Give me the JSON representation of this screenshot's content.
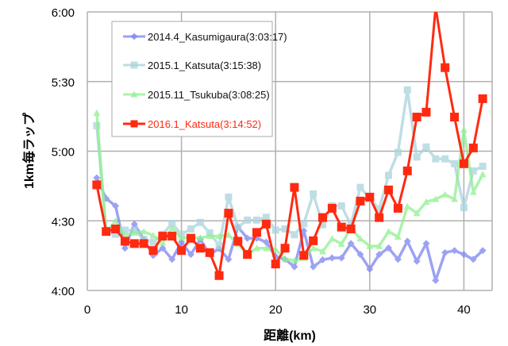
{
  "chart_data": {
    "type": "line",
    "title": "",
    "xlabel": "距離(km)",
    "ylabel": "1km毎ラップ",
    "xlim": [
      0,
      43
    ],
    "ylim": [
      240,
      360
    ],
    "y_unit": "seconds per km",
    "x_ticks": [
      0,
      10,
      20,
      30,
      40
    ],
    "x_tick_labels": [
      "0",
      "10",
      "20",
      "30",
      "40"
    ],
    "y_ticks": [
      240,
      270,
      300,
      330,
      360
    ],
    "y_tick_labels": [
      "4:00",
      "4:30",
      "5:00",
      "5:30",
      "6:00"
    ],
    "grid": true,
    "legend_position": "top-left",
    "x": [
      1,
      2,
      3,
      4,
      5,
      6,
      7,
      8,
      9,
      10,
      11,
      12,
      13,
      14,
      15,
      16,
      17,
      18,
      19,
      20,
      21,
      22,
      23,
      24,
      25,
      26,
      27,
      28,
      29,
      30,
      31,
      32,
      33,
      34,
      35,
      36,
      37,
      38,
      39,
      40,
      41,
      42
    ],
    "series": [
      {
        "name": "2014.4_Kasumigaura(3:03:17)",
        "color": "#7b84f0",
        "marker": "diamond",
        "values": [
          288.5,
          279.6,
          276.4,
          258.2,
          268.6,
          262,
          255.1,
          258.2,
          253.4,
          260.8,
          255.5,
          262,
          255.5,
          258,
          253.4,
          267.3,
          262.5,
          262.5,
          260.8,
          254.6,
          253.4,
          250.2,
          265.7,
          250.2,
          253.2,
          254,
          254,
          260.2,
          255.5,
          249.2,
          255.5,
          258.3,
          253.4,
          261.2,
          252.6,
          260.2,
          244.3,
          256.3,
          257.2,
          255.5,
          253.4,
          257.2
        ]
      },
      {
        "name": "2015.1_Katsuta(3:15:38)",
        "color": "#a9d4dc",
        "marker": "square",
        "values": [
          311,
          265.6,
          264.2,
          266,
          266,
          262,
          260.8,
          264.2,
          268.8,
          264.2,
          266.5,
          269.3,
          264.8,
          259.3,
          280.2,
          267.3,
          270.3,
          270.3,
          271.5,
          266,
          266.5,
          264,
          268.8,
          281.6,
          268.3,
          276.4,
          276.4,
          268.3,
          284.4,
          279.6,
          275,
          289.6,
          299.5,
          326.4,
          297.5,
          301.8,
          296.7,
          296.7,
          294.6,
          275.7,
          291.5,
          293.5
        ]
      },
      {
        "name": "2015.11_Tsukuba(3:08:25)",
        "color": "#8ff08f",
        "marker": "triangle",
        "values": [
          316.5,
          265,
          269.9,
          263.7,
          264.8,
          265.4,
          263.7,
          260.5,
          266.8,
          262.7,
          262.7,
          262.7,
          263.4,
          263.4,
          263.9,
          260,
          255.5,
          258.2,
          258.2,
          257.7,
          253.6,
          252.9,
          254,
          258.2,
          256.8,
          262.3,
          260,
          266.8,
          262.3,
          259.1,
          259.1,
          265.4,
          263.1,
          276.2,
          273.3,
          278.2,
          279.3,
          281.3,
          279.3,
          309.2,
          282.4,
          290
        ]
      },
      {
        "name": "2016.1_Katsuta(3:14:52)",
        "color": "#ff2a10",
        "marker": "square",
        "values": [
          285.5,
          265.4,
          266.5,
          261.2,
          260.2,
          260.2,
          257.2,
          263.4,
          263.4,
          257.2,
          262.5,
          258.2,
          256.3,
          246.4,
          273.3,
          261.2,
          255.5,
          265,
          268.6,
          251.4,
          258.2,
          284.4,
          255.1,
          261.4,
          271.4,
          275.4,
          267.3,
          266.5,
          278.5,
          280.2,
          271.4,
          283.3,
          275.4,
          291.5,
          314.7,
          316.8,
          362,
          336,
          314.7,
          294.6,
          301.4,
          322.6
        ]
      }
    ]
  }
}
